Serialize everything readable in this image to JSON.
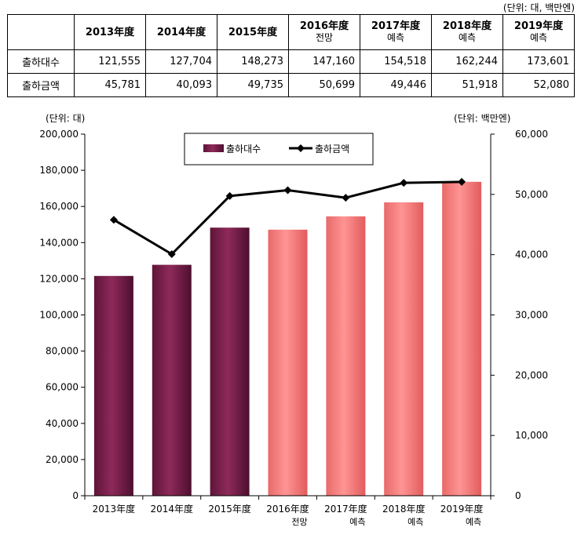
{
  "table": {
    "unit_note": "(단위: 대, 백만엔)",
    "columns": [
      {
        "year": "2013年度",
        "note": ""
      },
      {
        "year": "2014年度",
        "note": ""
      },
      {
        "year": "2015年度",
        "note": ""
      },
      {
        "year": "2016年度",
        "note": "전망"
      },
      {
        "year": "2017年度",
        "note": "예측"
      },
      {
        "year": "2018年度",
        "note": "예측"
      },
      {
        "year": "2019年度",
        "note": "예측"
      }
    ],
    "rows": [
      {
        "label": "출하대수",
        "values": [
          "121,555",
          "127,704",
          "148,273",
          "147,160",
          "154,518",
          "162,244",
          "173,601"
        ]
      },
      {
        "label": "출하금액",
        "values": [
          "45,781",
          "40,093",
          "49,735",
          "50,699",
          "49,446",
          "51,918",
          "52,080"
        ]
      }
    ]
  },
  "chart_data": {
    "type": "bar",
    "categories": [
      "2013年度",
      "2014年度",
      "2015年度",
      "2016年度",
      "2017年度",
      "2018年度",
      "2019年度"
    ],
    "category_notes": [
      "",
      "",
      "",
      "전망",
      "예측",
      "예측",
      "예측"
    ],
    "series": [
      {
        "name": "출하대수",
        "type": "bar",
        "axis": "left",
        "values": [
          121555,
          127704,
          148273,
          147160,
          154518,
          162244,
          173601
        ]
      },
      {
        "name": "출하금액",
        "type": "line",
        "axis": "right",
        "values": [
          45781,
          40093,
          49735,
          50699,
          49446,
          51918,
          52080
        ]
      }
    ],
    "ylabel_left": "(단위: 대)",
    "ylabel_right": "(단위: 백만엔)",
    "ylim_left": [
      0,
      200000
    ],
    "ylim_right": [
      0,
      60000
    ],
    "yticks_left": [
      "0",
      "20,000",
      "40,000",
      "60,000",
      "80,000",
      "100,000",
      "120,000",
      "140,000",
      "160,000",
      "180,000",
      "200,000"
    ],
    "yticks_right": [
      "0",
      "10,000",
      "20,000",
      "30,000",
      "40,000",
      "50,000",
      "60,000"
    ],
    "legend_position": "top-center",
    "grid": false,
    "colors": {
      "actual_bar": "#7a1f4c",
      "forecast_bar": "#f47a7a",
      "line": "#000000"
    }
  }
}
